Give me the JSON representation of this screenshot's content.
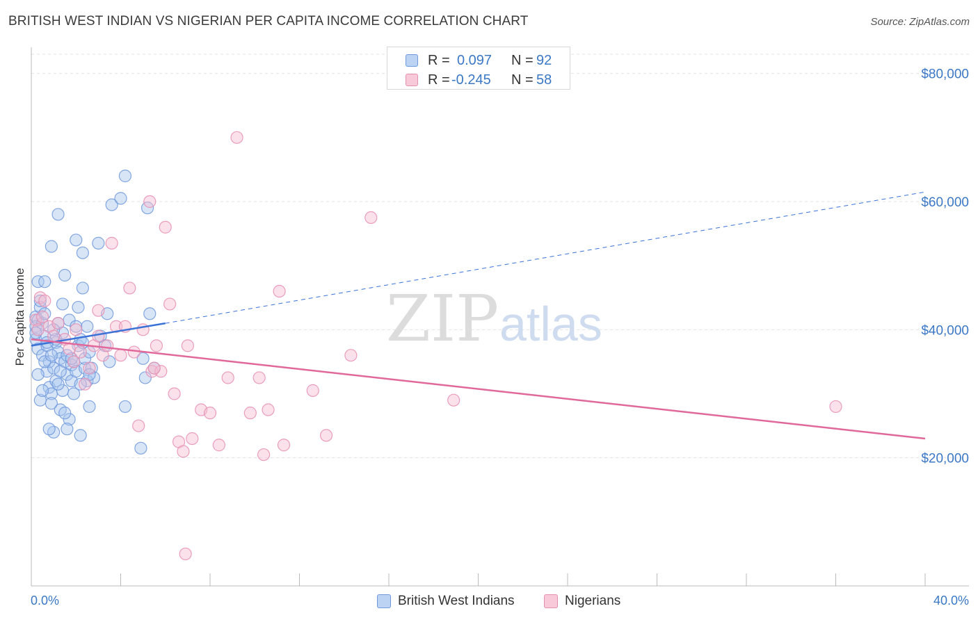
{
  "title": "BRITISH WEST INDIAN VS NIGERIAN PER CAPITA INCOME CORRELATION CHART",
  "source": "Source: ZipAtlas.com",
  "watermark": {
    "zip": "ZIP",
    "atlas": "atlas"
  },
  "stats": [
    {
      "r_label": "R =",
      "r_value": "0.097",
      "n_label": "N =",
      "n_value": "92"
    },
    {
      "r_label": "R =",
      "r_value": "-0.245",
      "n_label": "N =",
      "n_value": "58"
    }
  ],
  "chart_data": {
    "type": "scatter",
    "title": "BRITISH WEST INDIAN VS NIGERIAN PER CAPITA INCOME CORRELATION CHART",
    "xlabel": "",
    "ylabel": "Per Capita Income",
    "xlim": [
      0,
      40
    ],
    "ylim": [
      0,
      83000
    ],
    "x_tick_labels": [
      "0.0%",
      "40.0%"
    ],
    "y_ticks": [
      20000,
      40000,
      60000,
      80000
    ],
    "y_tick_labels": [
      "$20,000",
      "$40,000",
      "$60,000",
      "$80,000"
    ],
    "grid": true,
    "colors": {
      "blue": "#3a72d8",
      "pink": "#e0689a",
      "blue_fill": "#a9c6ee",
      "pink_fill": "#f6bdd0",
      "axis_text": "#3b78c6"
    },
    "series": [
      {
        "name": "British West Indians",
        "color": "#3a72d8",
        "points": [
          [
            0.2,
            42000
          ],
          [
            0.2,
            40500
          ],
          [
            0.3,
            41500
          ],
          [
            0.2,
            38500
          ],
          [
            0.3,
            37000
          ],
          [
            0.4,
            43500
          ],
          [
            0.4,
            44500
          ],
          [
            0.5,
            41000
          ],
          [
            0.5,
            36000
          ],
          [
            0.6,
            39000
          ],
          [
            0.6,
            42500
          ],
          [
            0.7,
            37500
          ],
          [
            0.7,
            33500
          ],
          [
            0.8,
            35000
          ],
          [
            0.8,
            31000
          ],
          [
            0.9,
            30000
          ],
          [
            0.9,
            28500
          ],
          [
            1.0,
            34000
          ],
          [
            1.0,
            24000
          ],
          [
            1.1,
            32000
          ],
          [
            1.1,
            38000
          ],
          [
            1.2,
            36500
          ],
          [
            1.2,
            41000
          ],
          [
            1.3,
            35500
          ],
          [
            1.3,
            27500
          ],
          [
            1.4,
            30500
          ],
          [
            1.4,
            39500
          ],
          [
            1.5,
            35000
          ],
          [
            1.5,
            48500
          ],
          [
            1.6,
            36000
          ],
          [
            1.6,
            33000
          ],
          [
            1.7,
            41500
          ],
          [
            1.7,
            26000
          ],
          [
            1.8,
            34500
          ],
          [
            1.8,
            32000
          ],
          [
            1.9,
            35000
          ],
          [
            2.0,
            40500
          ],
          [
            2.0,
            33500
          ],
          [
            2.1,
            37500
          ],
          [
            2.1,
            43500
          ],
          [
            2.2,
            38500
          ],
          [
            2.2,
            23500
          ],
          [
            2.3,
            46500
          ],
          [
            2.3,
            52000
          ],
          [
            2.4,
            34000
          ],
          [
            2.4,
            35500
          ],
          [
            2.5,
            40500
          ],
          [
            2.5,
            32000
          ],
          [
            2.6,
            36500
          ],
          [
            2.6,
            28000
          ],
          [
            2.7,
            34000
          ],
          [
            2.8,
            32500
          ],
          [
            3.0,
            53500
          ],
          [
            3.1,
            39000
          ],
          [
            3.3,
            37500
          ],
          [
            3.4,
            42500
          ],
          [
            3.5,
            35000
          ],
          [
            3.6,
            59500
          ],
          [
            4.0,
            60500
          ],
          [
            4.2,
            64000
          ],
          [
            4.2,
            28000
          ],
          [
            4.9,
            21500
          ],
          [
            5.0,
            35500
          ],
          [
            5.1,
            32500
          ],
          [
            5.2,
            59000
          ],
          [
            5.3,
            42500
          ],
          [
            5.5,
            34000
          ],
          [
            0.3,
            47500
          ],
          [
            0.6,
            47500
          ],
          [
            0.9,
            53000
          ],
          [
            1.2,
            58000
          ],
          [
            1.4,
            44000
          ],
          [
            2.0,
            54000
          ],
          [
            0.4,
            29000
          ],
          [
            0.8,
            24500
          ],
          [
            1.1,
            38500
          ],
          [
            1.6,
            24500
          ],
          [
            1.9,
            30000
          ],
          [
            2.3,
            38000
          ],
          [
            0.5,
            30500
          ],
          [
            0.7,
            38000
          ],
          [
            0.3,
            33000
          ],
          [
            1.0,
            40000
          ],
          [
            1.3,
            33500
          ],
          [
            1.5,
            27000
          ],
          [
            2.2,
            31500
          ],
          [
            0.2,
            39500
          ],
          [
            0.6,
            35000
          ],
          [
            0.9,
            36000
          ],
          [
            1.2,
            31500
          ],
          [
            1.8,
            35500
          ],
          [
            2.6,
            33000
          ]
        ]
      },
      {
        "name": "Nigerians",
        "color": "#e0689a",
        "points": [
          [
            0.2,
            41500
          ],
          [
            0.3,
            40000
          ],
          [
            0.4,
            45000
          ],
          [
            0.5,
            42000
          ],
          [
            0.6,
            44500
          ],
          [
            0.8,
            40500
          ],
          [
            1.0,
            39000
          ],
          [
            1.2,
            41000
          ],
          [
            1.5,
            38500
          ],
          [
            1.7,
            37000
          ],
          [
            1.9,
            35000
          ],
          [
            2.0,
            40000
          ],
          [
            2.2,
            36500
          ],
          [
            2.4,
            31500
          ],
          [
            2.6,
            34000
          ],
          [
            2.8,
            37500
          ],
          [
            3.0,
            39000
          ],
          [
            3.2,
            36000
          ],
          [
            3.4,
            37500
          ],
          [
            3.6,
            53500
          ],
          [
            3.8,
            40500
          ],
          [
            4.0,
            36000
          ],
          [
            4.2,
            40500
          ],
          [
            4.4,
            46500
          ],
          [
            4.6,
            36500
          ],
          [
            4.8,
            25000
          ],
          [
            5.0,
            40000
          ],
          [
            5.3,
            60000
          ],
          [
            5.4,
            33500
          ],
          [
            5.6,
            37500
          ],
          [
            5.8,
            33500
          ],
          [
            6.0,
            56000
          ],
          [
            6.2,
            44000
          ],
          [
            6.4,
            30000
          ],
          [
            6.6,
            22500
          ],
          [
            6.8,
            21000
          ],
          [
            7.0,
            37500
          ],
          [
            7.2,
            23000
          ],
          [
            7.6,
            27500
          ],
          [
            8.0,
            27000
          ],
          [
            8.4,
            22000
          ],
          [
            8.8,
            32500
          ],
          [
            9.2,
            70000
          ],
          [
            9.8,
            27000
          ],
          [
            10.2,
            32500
          ],
          [
            10.4,
            20500
          ],
          [
            10.6,
            27500
          ],
          [
            11.1,
            46000
          ],
          [
            11.3,
            22000
          ],
          [
            12.6,
            30500
          ],
          [
            13.2,
            23500
          ],
          [
            14.3,
            36000
          ],
          [
            15.2,
            57500
          ],
          [
            18.9,
            29000
          ],
          [
            36.0,
            28000
          ],
          [
            6.9,
            5000
          ],
          [
            3.0,
            43000
          ],
          [
            5.5,
            34000
          ]
        ]
      }
    ],
    "trend_lines": [
      {
        "series": "British West Indians",
        "x": [
          0,
          6
        ],
        "y": [
          37500,
          41000
        ],
        "dashed_extension_to_x": 40,
        "dashed_extension_to_y": 61500
      },
      {
        "series": "Nigerians",
        "x": [
          0,
          40
        ],
        "y": [
          38500,
          23000
        ]
      }
    ],
    "legend": [
      "British West Indians",
      "Nigerians"
    ]
  }
}
